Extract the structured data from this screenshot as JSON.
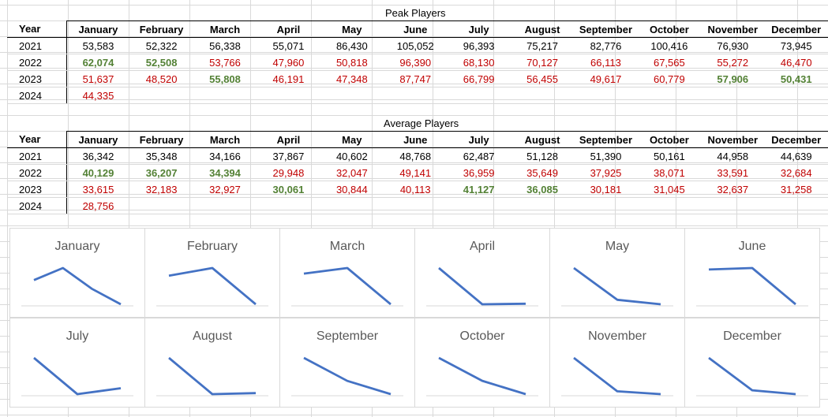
{
  "months": [
    "January",
    "February",
    "March",
    "April",
    "May",
    "June",
    "July",
    "August",
    "September",
    "October",
    "November",
    "December"
  ],
  "year_label": "Year",
  "peak": {
    "title": "Peak Players",
    "rows": [
      {
        "year": "2021",
        "cells": [
          [
            "53,583",
            "black"
          ],
          [
            "52,322",
            "black"
          ],
          [
            "56,338",
            "black"
          ],
          [
            "55,071",
            "black"
          ],
          [
            "86,430",
            "black"
          ],
          [
            "105,052",
            "black"
          ],
          [
            "96,393",
            "black"
          ],
          [
            "75,217",
            "black"
          ],
          [
            "82,776",
            "black"
          ],
          [
            "100,416",
            "black"
          ],
          [
            "76,930",
            "black"
          ],
          [
            "73,945",
            "black"
          ]
        ]
      },
      {
        "year": "2022",
        "cells": [
          [
            "62,074",
            "green"
          ],
          [
            "52,508",
            "green"
          ],
          [
            "53,766",
            "red"
          ],
          [
            "47,960",
            "red"
          ],
          [
            "50,818",
            "red"
          ],
          [
            "96,390",
            "red"
          ],
          [
            "68,130",
            "red"
          ],
          [
            "70,127",
            "red"
          ],
          [
            "66,113",
            "red"
          ],
          [
            "67,565",
            "red"
          ],
          [
            "55,272",
            "red"
          ],
          [
            "46,470",
            "red"
          ]
        ]
      },
      {
        "year": "2023",
        "cells": [
          [
            "51,637",
            "red"
          ],
          [
            "48,520",
            "red"
          ],
          [
            "55,808",
            "green"
          ],
          [
            "46,191",
            "red"
          ],
          [
            "47,348",
            "red"
          ],
          [
            "87,747",
            "red"
          ],
          [
            "66,799",
            "red"
          ],
          [
            "56,455",
            "red"
          ],
          [
            "49,617",
            "red"
          ],
          [
            "60,779",
            "red"
          ],
          [
            "57,906",
            "green"
          ],
          [
            "50,431",
            "green"
          ]
        ]
      },
      {
        "year": "2024",
        "cells": [
          [
            "44,335",
            "red"
          ]
        ]
      }
    ]
  },
  "average": {
    "title": "Average Players",
    "rows": [
      {
        "year": "2021",
        "cells": [
          [
            "36,342",
            "black"
          ],
          [
            "35,348",
            "black"
          ],
          [
            "34,166",
            "black"
          ],
          [
            "37,867",
            "black"
          ],
          [
            "40,602",
            "black"
          ],
          [
            "48,768",
            "black"
          ],
          [
            "62,487",
            "black"
          ],
          [
            "51,128",
            "black"
          ],
          [
            "51,390",
            "black"
          ],
          [
            "50,161",
            "black"
          ],
          [
            "44,958",
            "black"
          ],
          [
            "44,639",
            "black"
          ]
        ]
      },
      {
        "year": "2022",
        "cells": [
          [
            "40,129",
            "green"
          ],
          [
            "36,207",
            "green"
          ],
          [
            "34,394",
            "green"
          ],
          [
            "29,948",
            "red"
          ],
          [
            "32,047",
            "red"
          ],
          [
            "49,141",
            "red"
          ],
          [
            "36,959",
            "red"
          ],
          [
            "35,649",
            "red"
          ],
          [
            "37,925",
            "red"
          ],
          [
            "38,071",
            "red"
          ],
          [
            "33,591",
            "red"
          ],
          [
            "32,684",
            "red"
          ]
        ]
      },
      {
        "year": "2023",
        "cells": [
          [
            "33,615",
            "red"
          ],
          [
            "32,183",
            "red"
          ],
          [
            "32,927",
            "red"
          ],
          [
            "30,061",
            "green"
          ],
          [
            "30,844",
            "red"
          ],
          [
            "40,113",
            "red"
          ],
          [
            "41,127",
            "green"
          ],
          [
            "36,085",
            "green"
          ],
          [
            "30,181",
            "red"
          ],
          [
            "31,045",
            "red"
          ],
          [
            "32,637",
            "red"
          ],
          [
            "31,258",
            "red"
          ]
        ]
      },
      {
        "year": "2024",
        "cells": [
          [
            "28,756",
            "red"
          ]
        ]
      }
    ]
  },
  "chart_data": [
    {
      "type": "line",
      "title": "January",
      "values": [
        36342,
        40129,
        33615,
        28756
      ],
      "line_color": "#4472c4"
    },
    {
      "type": "line",
      "title": "February",
      "values": [
        35348,
        36207,
        32183
      ],
      "line_color": "#4472c4"
    },
    {
      "type": "line",
      "title": "March",
      "values": [
        34166,
        34394,
        32927
      ],
      "line_color": "#4472c4"
    },
    {
      "type": "line",
      "title": "April",
      "values": [
        37867,
        29948,
        30061
      ],
      "line_color": "#4472c4"
    },
    {
      "type": "line",
      "title": "May",
      "values": [
        40602,
        32047,
        30844
      ],
      "line_color": "#4472c4"
    },
    {
      "type": "line",
      "title": "June",
      "values": [
        48768,
        49141,
        40113
      ],
      "line_color": "#4472c4"
    },
    {
      "type": "line",
      "title": "July",
      "values": [
        62487,
        36959,
        41127
      ],
      "line_color": "#4472c4"
    },
    {
      "type": "line",
      "title": "August",
      "values": [
        51128,
        35649,
        36085
      ],
      "line_color": "#4472c4"
    },
    {
      "type": "line",
      "title": "September",
      "values": [
        51390,
        37925,
        30181
      ],
      "line_color": "#4472c4"
    },
    {
      "type": "line",
      "title": "October",
      "values": [
        50161,
        38071,
        31045
      ],
      "line_color": "#4472c4"
    },
    {
      "type": "line",
      "title": "November",
      "values": [
        44958,
        33591,
        32637
      ],
      "line_color": "#4472c4"
    },
    {
      "type": "line",
      "title": "December",
      "values": [
        44639,
        32684,
        31258
      ],
      "line_color": "#4472c4"
    }
  ]
}
